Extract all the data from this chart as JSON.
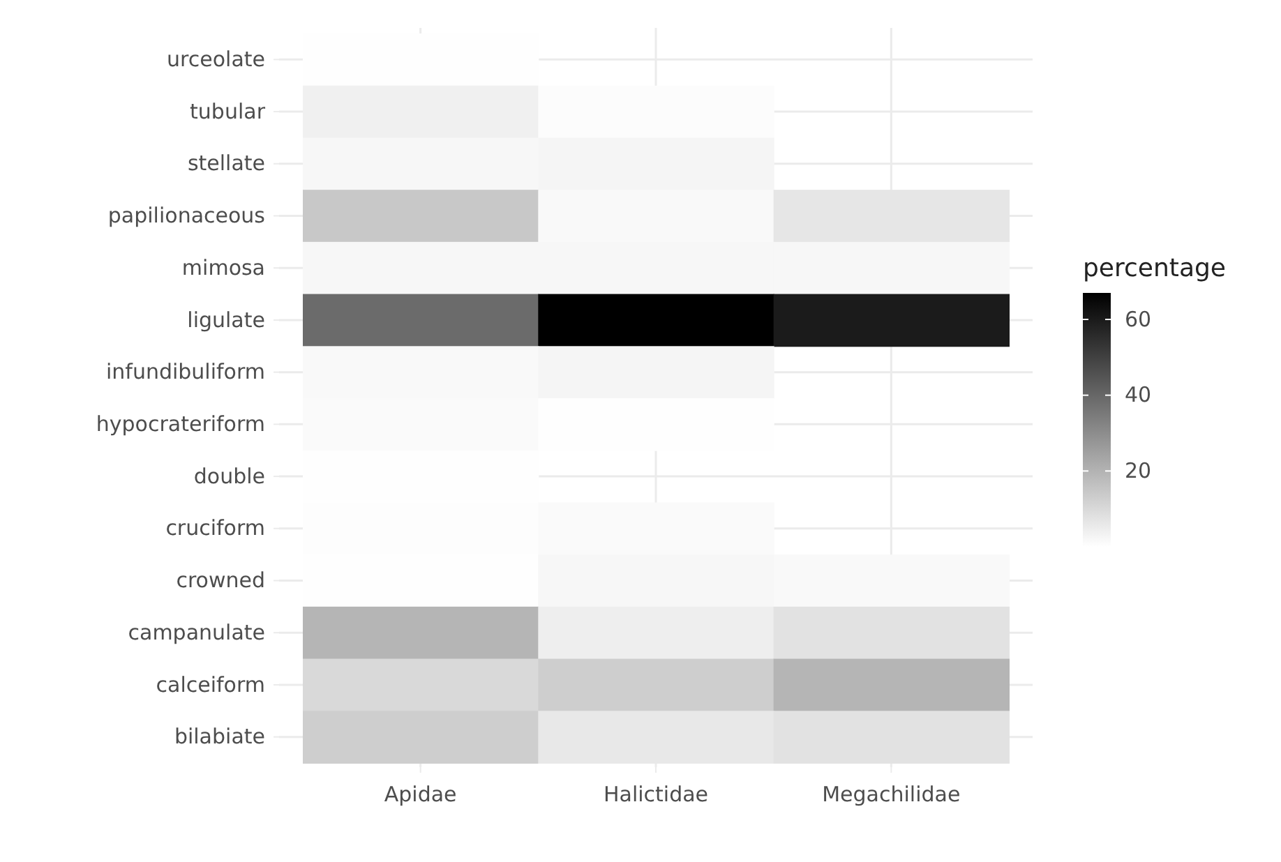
{
  "chart_data": {
    "type": "heatmap",
    "categories": [
      "Apidae",
      "Halictidae",
      "Megachilidae"
    ],
    "y_categories": [
      "urceolate",
      "tubular",
      "stellate",
      "papilionaceous",
      "mimosa",
      "ligulate",
      "infundibuliform",
      "hypocrateriform",
      "double",
      "cruciform",
      "crowned",
      "campanulate",
      "calceiform",
      "bilabiate"
    ],
    "cells": [
      [
        0.2,
        null,
        null
      ],
      [
        4,
        0.8,
        null
      ],
      [
        2,
        2.5,
        null
      ],
      [
        14.5,
        1.5,
        6.5
      ],
      [
        2,
        2,
        2
      ],
      [
        39,
        67,
        60
      ],
      [
        1.5,
        2.5,
        null
      ],
      [
        1.3,
        0.3,
        null
      ],
      [
        0.2,
        null,
        null
      ],
      [
        0.5,
        1.3,
        null
      ],
      [
        0.3,
        2,
        1.5
      ],
      [
        19.5,
        4.5,
        7.5
      ],
      [
        10,
        13,
        19.5
      ],
      [
        13,
        6,
        7.5
      ]
    ],
    "clabel": "percentage",
    "clim": [
      0,
      67
    ],
    "cticks": [
      20,
      40,
      60
    ],
    "grid": true
  }
}
